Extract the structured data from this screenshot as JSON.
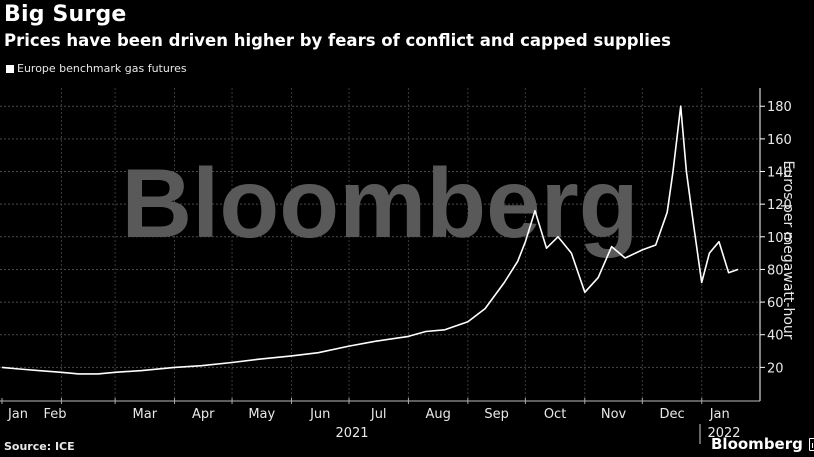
{
  "header": {
    "title": "Big Surge",
    "subtitle": "Prices have been driven higher by fears of conflict and capped supplies",
    "legend_label": "Europe benchmark gas futures"
  },
  "footer": {
    "source": "Source: ICE",
    "brand": "Bloomberg",
    "watermark": "Bloomberg"
  },
  "axis": {
    "ylabel": "Euros per megawatt-hour",
    "y_ticks": [
      "20",
      "40",
      "60",
      "80",
      "100",
      "120",
      "140",
      "160",
      "180"
    ],
    "x_ticks": [
      "Jan",
      "Feb",
      "Mar",
      "Apr",
      "May",
      "Jun",
      "Jul",
      "Aug",
      "Sep",
      "Oct",
      "Nov",
      "Dec",
      "Jan"
    ],
    "year_labels": [
      "2021",
      "2022"
    ]
  },
  "colors": {
    "background": "#000000",
    "line": "#ffffff",
    "grid": "#555555",
    "watermark": "#595959"
  },
  "chart_data": {
    "type": "line",
    "title": "Big Surge",
    "subtitle": "Prices have been driven higher by fears of conflict and capped supplies",
    "xlabel": "",
    "ylabel": "Euros per megawatt-hour",
    "ylim": [
      0,
      190
    ],
    "y_ticks": [
      20,
      40,
      60,
      80,
      100,
      120,
      140,
      160,
      180
    ],
    "grid": true,
    "legend_position": "top-left",
    "x": [
      "2021-01-01",
      "2021-01-10",
      "2021-01-20",
      "2021-02-01",
      "2021-02-10",
      "2021-02-20",
      "2021-03-01",
      "2021-03-15",
      "2021-04-01",
      "2021-04-15",
      "2021-05-01",
      "2021-05-15",
      "2021-06-01",
      "2021-06-15",
      "2021-07-01",
      "2021-07-15",
      "2021-08-01",
      "2021-08-10",
      "2021-08-20",
      "2021-09-01",
      "2021-09-10",
      "2021-09-20",
      "2021-09-27",
      "2021-10-01",
      "2021-10-06",
      "2021-10-12",
      "2021-10-18",
      "2021-10-25",
      "2021-11-01",
      "2021-11-08",
      "2021-11-15",
      "2021-11-22",
      "2021-12-01",
      "2021-12-08",
      "2021-12-14",
      "2021-12-17",
      "2021-12-21",
      "2021-12-24",
      "2021-12-28",
      "2022-01-01",
      "2022-01-05",
      "2022-01-10",
      "2022-01-15",
      "2022-01-20"
    ],
    "series": [
      {
        "name": "Europe benchmark gas futures",
        "values": [
          20,
          19,
          18,
          17,
          16,
          16,
          17,
          18,
          20,
          21,
          23,
          25,
          27,
          29,
          33,
          36,
          39,
          42,
          43,
          48,
          56,
          72,
          85,
          97,
          116,
          93,
          100,
          90,
          66,
          75,
          94,
          87,
          92,
          95,
          115,
          140,
          180,
          140,
          105,
          72,
          90,
          97,
          78,
          80
        ]
      }
    ]
  }
}
